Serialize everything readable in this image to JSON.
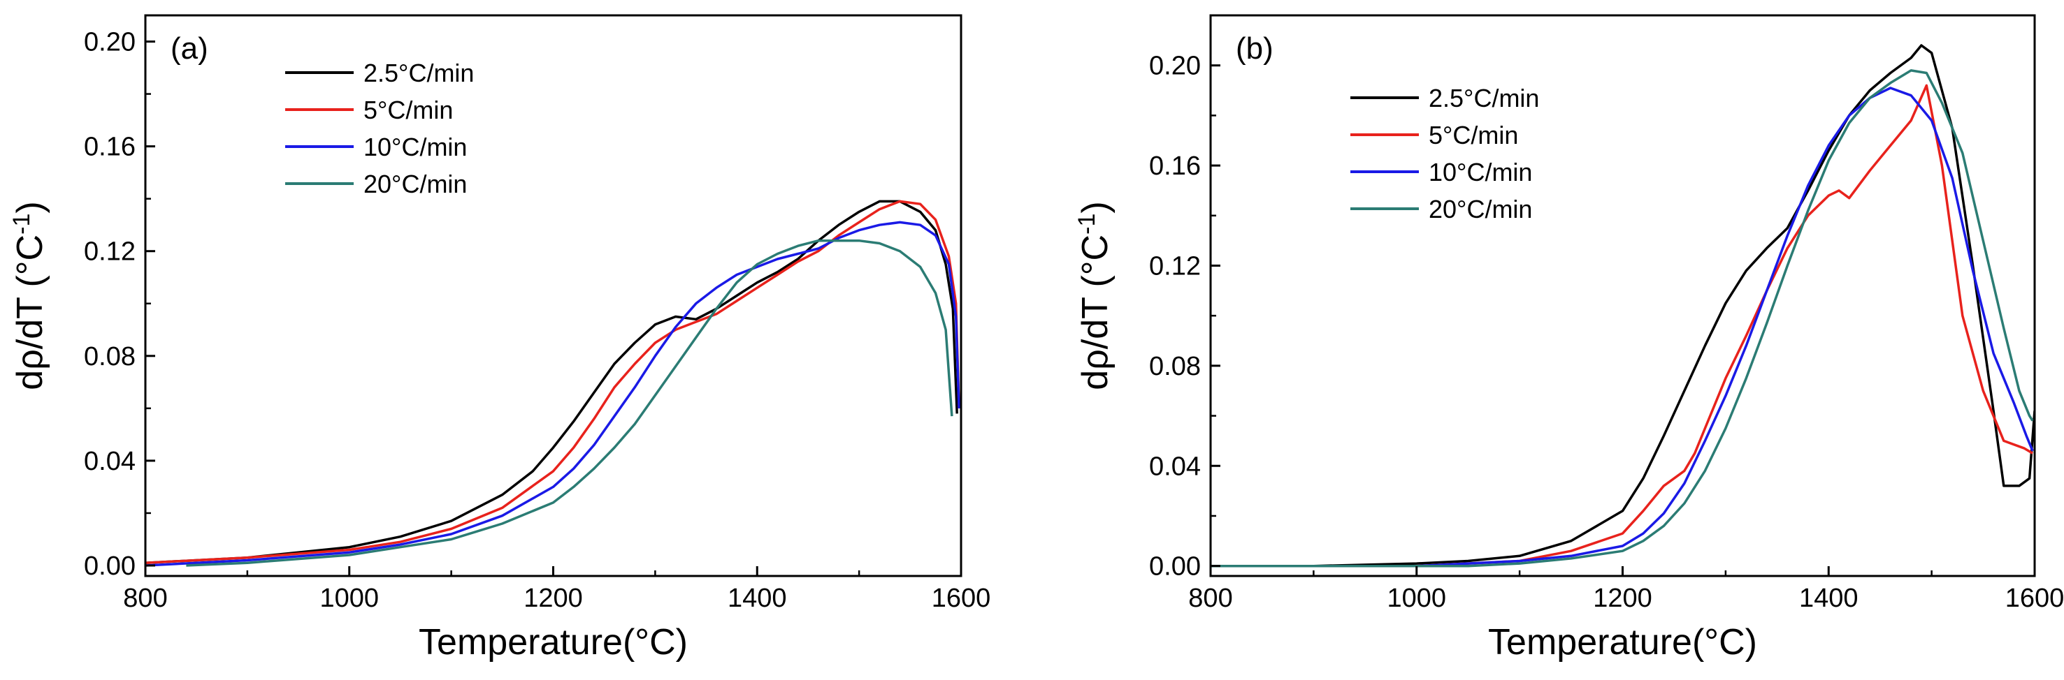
{
  "chart_data": [
    {
      "type": "line",
      "panel_label": "(a)",
      "xlabel": "Temperature(°C)",
      "ylabel": "dρ/dT (°C",
      "ylabel_sup": "-1",
      "ylabel_close": ")",
      "xlim": [
        800,
        1600
      ],
      "ylim": [
        -0.004,
        0.21
      ],
      "xticks": [
        800,
        1000,
        1200,
        1400,
        1600
      ],
      "xtick_labels": [
        "800",
        "1000",
        "1200",
        "1400",
        "1600"
      ],
      "yticks": [
        0.0,
        0.04,
        0.08,
        0.12,
        0.16,
        0.2
      ],
      "ytick_labels": [
        "0.00",
        "0.04",
        "0.08",
        "0.12",
        "0.16",
        "0.20"
      ],
      "grid": false,
      "legend_position": "top-center",
      "series": [
        {
          "name": "2.5°C/min",
          "color": "#000000",
          "x": [
            800,
            900,
            1000,
            1050,
            1100,
            1150,
            1180,
            1200,
            1220,
            1240,
            1260,
            1280,
            1300,
            1320,
            1340,
            1360,
            1380,
            1400,
            1420,
            1440,
            1460,
            1480,
            1500,
            1520,
            1540,
            1560,
            1575,
            1585,
            1592,
            1596
          ],
          "y": [
            0.001,
            0.003,
            0.007,
            0.011,
            0.017,
            0.027,
            0.036,
            0.045,
            0.055,
            0.066,
            0.077,
            0.085,
            0.092,
            0.095,
            0.094,
            0.098,
            0.103,
            0.108,
            0.112,
            0.117,
            0.124,
            0.13,
            0.135,
            0.139,
            0.139,
            0.135,
            0.128,
            0.115,
            0.098,
            0.058
          ]
        },
        {
          "name": "5°C/min",
          "color": "#e8221c",
          "x": [
            800,
            900,
            1000,
            1050,
            1100,
            1150,
            1200,
            1220,
            1240,
            1260,
            1280,
            1300,
            1320,
            1340,
            1360,
            1380,
            1400,
            1420,
            1440,
            1460,
            1480,
            1500,
            1520,
            1540,
            1560,
            1575,
            1588,
            1595,
            1598
          ],
          "y": [
            0.001,
            0.003,
            0.006,
            0.009,
            0.014,
            0.022,
            0.036,
            0.045,
            0.056,
            0.068,
            0.077,
            0.085,
            0.09,
            0.093,
            0.096,
            0.101,
            0.106,
            0.111,
            0.116,
            0.12,
            0.126,
            0.131,
            0.136,
            0.139,
            0.138,
            0.132,
            0.118,
            0.1,
            0.06
          ]
        },
        {
          "name": "10°C/min",
          "color": "#1a1ae6",
          "x": [
            800,
            900,
            1000,
            1050,
            1100,
            1150,
            1200,
            1220,
            1240,
            1260,
            1280,
            1300,
            1320,
            1340,
            1360,
            1380,
            1400,
            1420,
            1440,
            1460,
            1480,
            1500,
            1520,
            1540,
            1560,
            1575,
            1588,
            1595,
            1598
          ],
          "y": [
            0.0,
            0.002,
            0.005,
            0.008,
            0.012,
            0.019,
            0.03,
            0.037,
            0.046,
            0.057,
            0.068,
            0.08,
            0.091,
            0.1,
            0.106,
            0.111,
            0.114,
            0.117,
            0.119,
            0.121,
            0.125,
            0.128,
            0.13,
            0.131,
            0.13,
            0.126,
            0.115,
            0.095,
            0.06
          ]
        },
        {
          "name": "20°C/min",
          "color": "#2b7c74",
          "x": [
            840,
            900,
            1000,
            1050,
            1100,
            1150,
            1200,
            1220,
            1240,
            1260,
            1280,
            1300,
            1320,
            1340,
            1360,
            1380,
            1400,
            1420,
            1440,
            1460,
            1480,
            1500,
            1520,
            1540,
            1560,
            1575,
            1585,
            1591
          ],
          "y": [
            0.0,
            0.001,
            0.004,
            0.007,
            0.01,
            0.016,
            0.024,
            0.03,
            0.037,
            0.045,
            0.054,
            0.065,
            0.076,
            0.087,
            0.098,
            0.108,
            0.115,
            0.119,
            0.122,
            0.124,
            0.124,
            0.124,
            0.123,
            0.12,
            0.114,
            0.104,
            0.09,
            0.057
          ]
        }
      ]
    },
    {
      "type": "line",
      "panel_label": "(b)",
      "xlabel": "Temperature(°C)",
      "ylabel": "dρ/dT (°C",
      "ylabel_sup": "-1",
      "ylabel_close": ")",
      "xlim": [
        800,
        1600
      ],
      "ylim": [
        -0.004,
        0.22
      ],
      "xticks": [
        800,
        1000,
        1200,
        1400,
        1600
      ],
      "xtick_labels": [
        "800",
        "1000",
        "1200",
        "1400",
        "1600"
      ],
      "yticks": [
        0.0,
        0.04,
        0.08,
        0.12,
        0.16,
        0.2
      ],
      "ytick_labels": [
        "0.00",
        "0.04",
        "0.08",
        "0.12",
        "0.16",
        "0.20"
      ],
      "grid": false,
      "legend_position": "top-center",
      "series": [
        {
          "name": "2.5°C/min",
          "color": "#000000",
          "x": [
            800,
            900,
            1000,
            1050,
            1100,
            1150,
            1200,
            1220,
            1240,
            1260,
            1280,
            1300,
            1320,
            1340,
            1360,
            1380,
            1400,
            1420,
            1440,
            1460,
            1480,
            1490,
            1500,
            1520,
            1540,
            1560,
            1570,
            1585,
            1595,
            1600
          ],
          "y": [
            0.0,
            0.0,
            0.001,
            0.002,
            0.004,
            0.01,
            0.022,
            0.035,
            0.052,
            0.07,
            0.088,
            0.105,
            0.118,
            0.127,
            0.135,
            0.15,
            0.166,
            0.18,
            0.19,
            0.197,
            0.203,
            0.208,
            0.205,
            0.175,
            0.12,
            0.062,
            0.032,
            0.032,
            0.035,
            0.062
          ]
        },
        {
          "name": "5°C/min",
          "color": "#e8221c",
          "x": [
            800,
            900,
            1000,
            1050,
            1100,
            1150,
            1200,
            1220,
            1240,
            1260,
            1270,
            1280,
            1300,
            1320,
            1340,
            1360,
            1380,
            1400,
            1410,
            1420,
            1440,
            1460,
            1480,
            1495,
            1510,
            1530,
            1550,
            1570,
            1590,
            1598
          ],
          "y": [
            0.0,
            0.0,
            0.0,
            0.001,
            0.002,
            0.006,
            0.013,
            0.022,
            0.032,
            0.038,
            0.045,
            0.055,
            0.075,
            0.092,
            0.11,
            0.127,
            0.14,
            0.148,
            0.15,
            0.147,
            0.158,
            0.168,
            0.178,
            0.192,
            0.16,
            0.1,
            0.07,
            0.05,
            0.047,
            0.045
          ]
        },
        {
          "name": "10°C/min",
          "color": "#1a1ae6",
          "x": [
            800,
            900,
            1000,
            1050,
            1100,
            1150,
            1200,
            1220,
            1240,
            1260,
            1280,
            1300,
            1320,
            1340,
            1360,
            1380,
            1400,
            1420,
            1440,
            1460,
            1480,
            1500,
            1520,
            1540,
            1560,
            1580,
            1592,
            1598
          ],
          "y": [
            0.0,
            0.0,
            0.0,
            0.001,
            0.002,
            0.004,
            0.008,
            0.013,
            0.021,
            0.033,
            0.05,
            0.068,
            0.088,
            0.11,
            0.132,
            0.152,
            0.168,
            0.18,
            0.187,
            0.191,
            0.188,
            0.178,
            0.155,
            0.118,
            0.085,
            0.065,
            0.052,
            0.046
          ]
        },
        {
          "name": "20°C/min",
          "color": "#2b7c74",
          "x": [
            800,
            900,
            1000,
            1050,
            1100,
            1150,
            1200,
            1220,
            1240,
            1260,
            1280,
            1300,
            1320,
            1340,
            1360,
            1380,
            1400,
            1420,
            1440,
            1460,
            1480,
            1495,
            1510,
            1530,
            1550,
            1570,
            1585,
            1595,
            1598
          ],
          "y": [
            0.0,
            0.0,
            0.0,
            0.0,
            0.001,
            0.003,
            0.006,
            0.01,
            0.016,
            0.025,
            0.038,
            0.055,
            0.075,
            0.097,
            0.12,
            0.142,
            0.162,
            0.177,
            0.187,
            0.193,
            0.198,
            0.197,
            0.185,
            0.165,
            0.13,
            0.095,
            0.07,
            0.06,
            0.058
          ]
        }
      ]
    }
  ]
}
